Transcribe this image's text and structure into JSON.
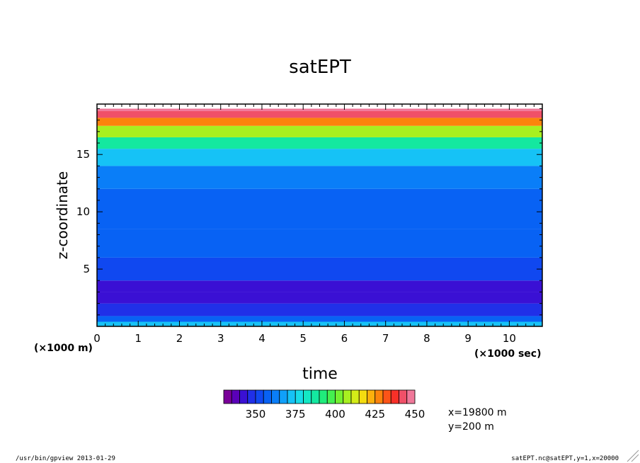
{
  "chart_data": {
    "type": "heatmap",
    "title": "satEPT",
    "xlabel": "time",
    "ylabel": "z-coordinate",
    "x_unit": "(×1000 sec)",
    "y_unit": "(×1000 m)",
    "x_ticks": [
      "0",
      "1",
      "2",
      "3",
      "4",
      "5",
      "6",
      "7",
      "8",
      "9",
      "10"
    ],
    "y_ticks": [
      "5",
      "10",
      "15"
    ],
    "xlim": [
      0,
      10.8
    ],
    "ylim": [
      0,
      19.4
    ],
    "colorbar": {
      "tick_labels": [
        "350",
        "375",
        "400",
        "425",
        "450"
      ],
      "tick_values": [
        350,
        375,
        400,
        425,
        450
      ],
      "colors": [
        "#7a0099",
        "#5a00b8",
        "#3a10d4",
        "#2030e8",
        "#1048f0",
        "#0862f4",
        "#0a7ef8",
        "#10a0fa",
        "#16c2f6",
        "#18dce8",
        "#14e8c4",
        "#14e8a0",
        "#20ec7c",
        "#44f050",
        "#74f030",
        "#a8f020",
        "#d4ec18",
        "#f4dc10",
        "#fcb00c",
        "#fc840c",
        "#fc5418",
        "#f83028",
        "#f05068",
        "#f0789a"
      ]
    },
    "profile": [
      {
        "z": [
          0,
          0.4
        ],
        "value": 372
      },
      {
        "z": [
          0.4,
          0.9
        ],
        "value": 355
      },
      {
        "z": [
          0.9,
          2.0
        ],
        "value": 347
      },
      {
        "z": [
          2.0,
          3.0
        ],
        "value": 343
      },
      {
        "z": [
          3.0,
          4.0
        ],
        "value": 340
      },
      {
        "z": [
          4.0,
          6.0
        ],
        "value": 352
      },
      {
        "z": [
          6.0,
          8.5
        ],
        "value": 356
      },
      {
        "z": [
          8.5,
          12.0
        ],
        "value": 356
      },
      {
        "z": [
          12.0,
          14.0
        ],
        "value": 360
      },
      {
        "z": [
          14.0,
          15.5
        ],
        "value": 370
      },
      {
        "z": [
          15.5,
          16.5
        ],
        "value": 388
      },
      {
        "z": [
          16.5,
          17.5
        ],
        "value": 405
      },
      {
        "z": [
          17.5,
          18.2
        ],
        "value": 428
      },
      {
        "z": [
          18.2,
          18.8
        ],
        "value": 442
      },
      {
        "z": [
          18.8,
          19.0
        ],
        "value": 452
      }
    ],
    "annotations": [
      "x=19800 m",
      "y=200 m"
    ]
  },
  "footer": {
    "left": "/usr/bin/gpview  2013-01-29",
    "right": "satEPT.nc@satEPT,y=1,x=20000"
  },
  "colors": {
    "frame": "#000000",
    "background": "#ffffff"
  }
}
